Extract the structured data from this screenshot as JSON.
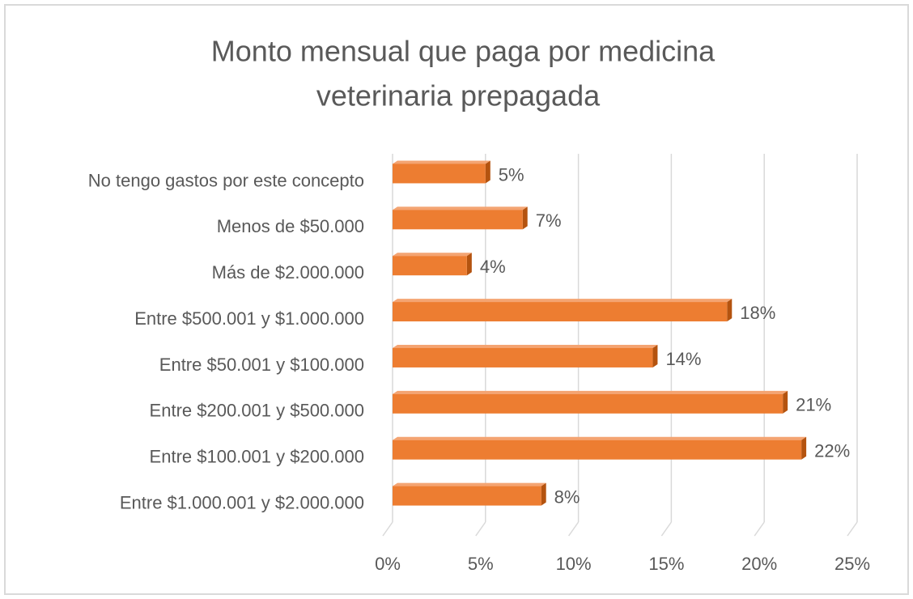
{
  "chart_data": {
    "type": "bar",
    "orientation": "horizontal",
    "three_d": true,
    "title": [
      "Monto mensual que paga por medicina",
      "veterinaria prepagada"
    ],
    "categories": [
      "No tengo gastos por este concepto",
      "Menos de $50.000",
      "Más de $2.000.000",
      "Entre $500.001 y $1.000.000",
      "Entre $50.001 y $100.000",
      "Entre $200.001 y $500.000",
      "Entre $100.001 y $200.000",
      "Entre $1.000.001 y $2.000.000"
    ],
    "values": [
      5,
      7,
      4,
      18,
      14,
      21,
      22,
      8
    ],
    "value_labels": [
      "5%",
      "7%",
      "4%",
      "18%",
      "14%",
      "21%",
      "22%",
      "8%"
    ],
    "color": "#ed7d31",
    "xlim": [
      0,
      25
    ],
    "xticks": [
      {
        "value": 0,
        "label": "0%"
      },
      {
        "value": 5,
        "label": "5%"
      },
      {
        "value": 10,
        "label": "10%"
      },
      {
        "value": 15,
        "label": "15%"
      },
      {
        "value": 20,
        "label": "20%"
      },
      {
        "value": 25,
        "label": "25%"
      }
    ],
    "grid": true
  }
}
